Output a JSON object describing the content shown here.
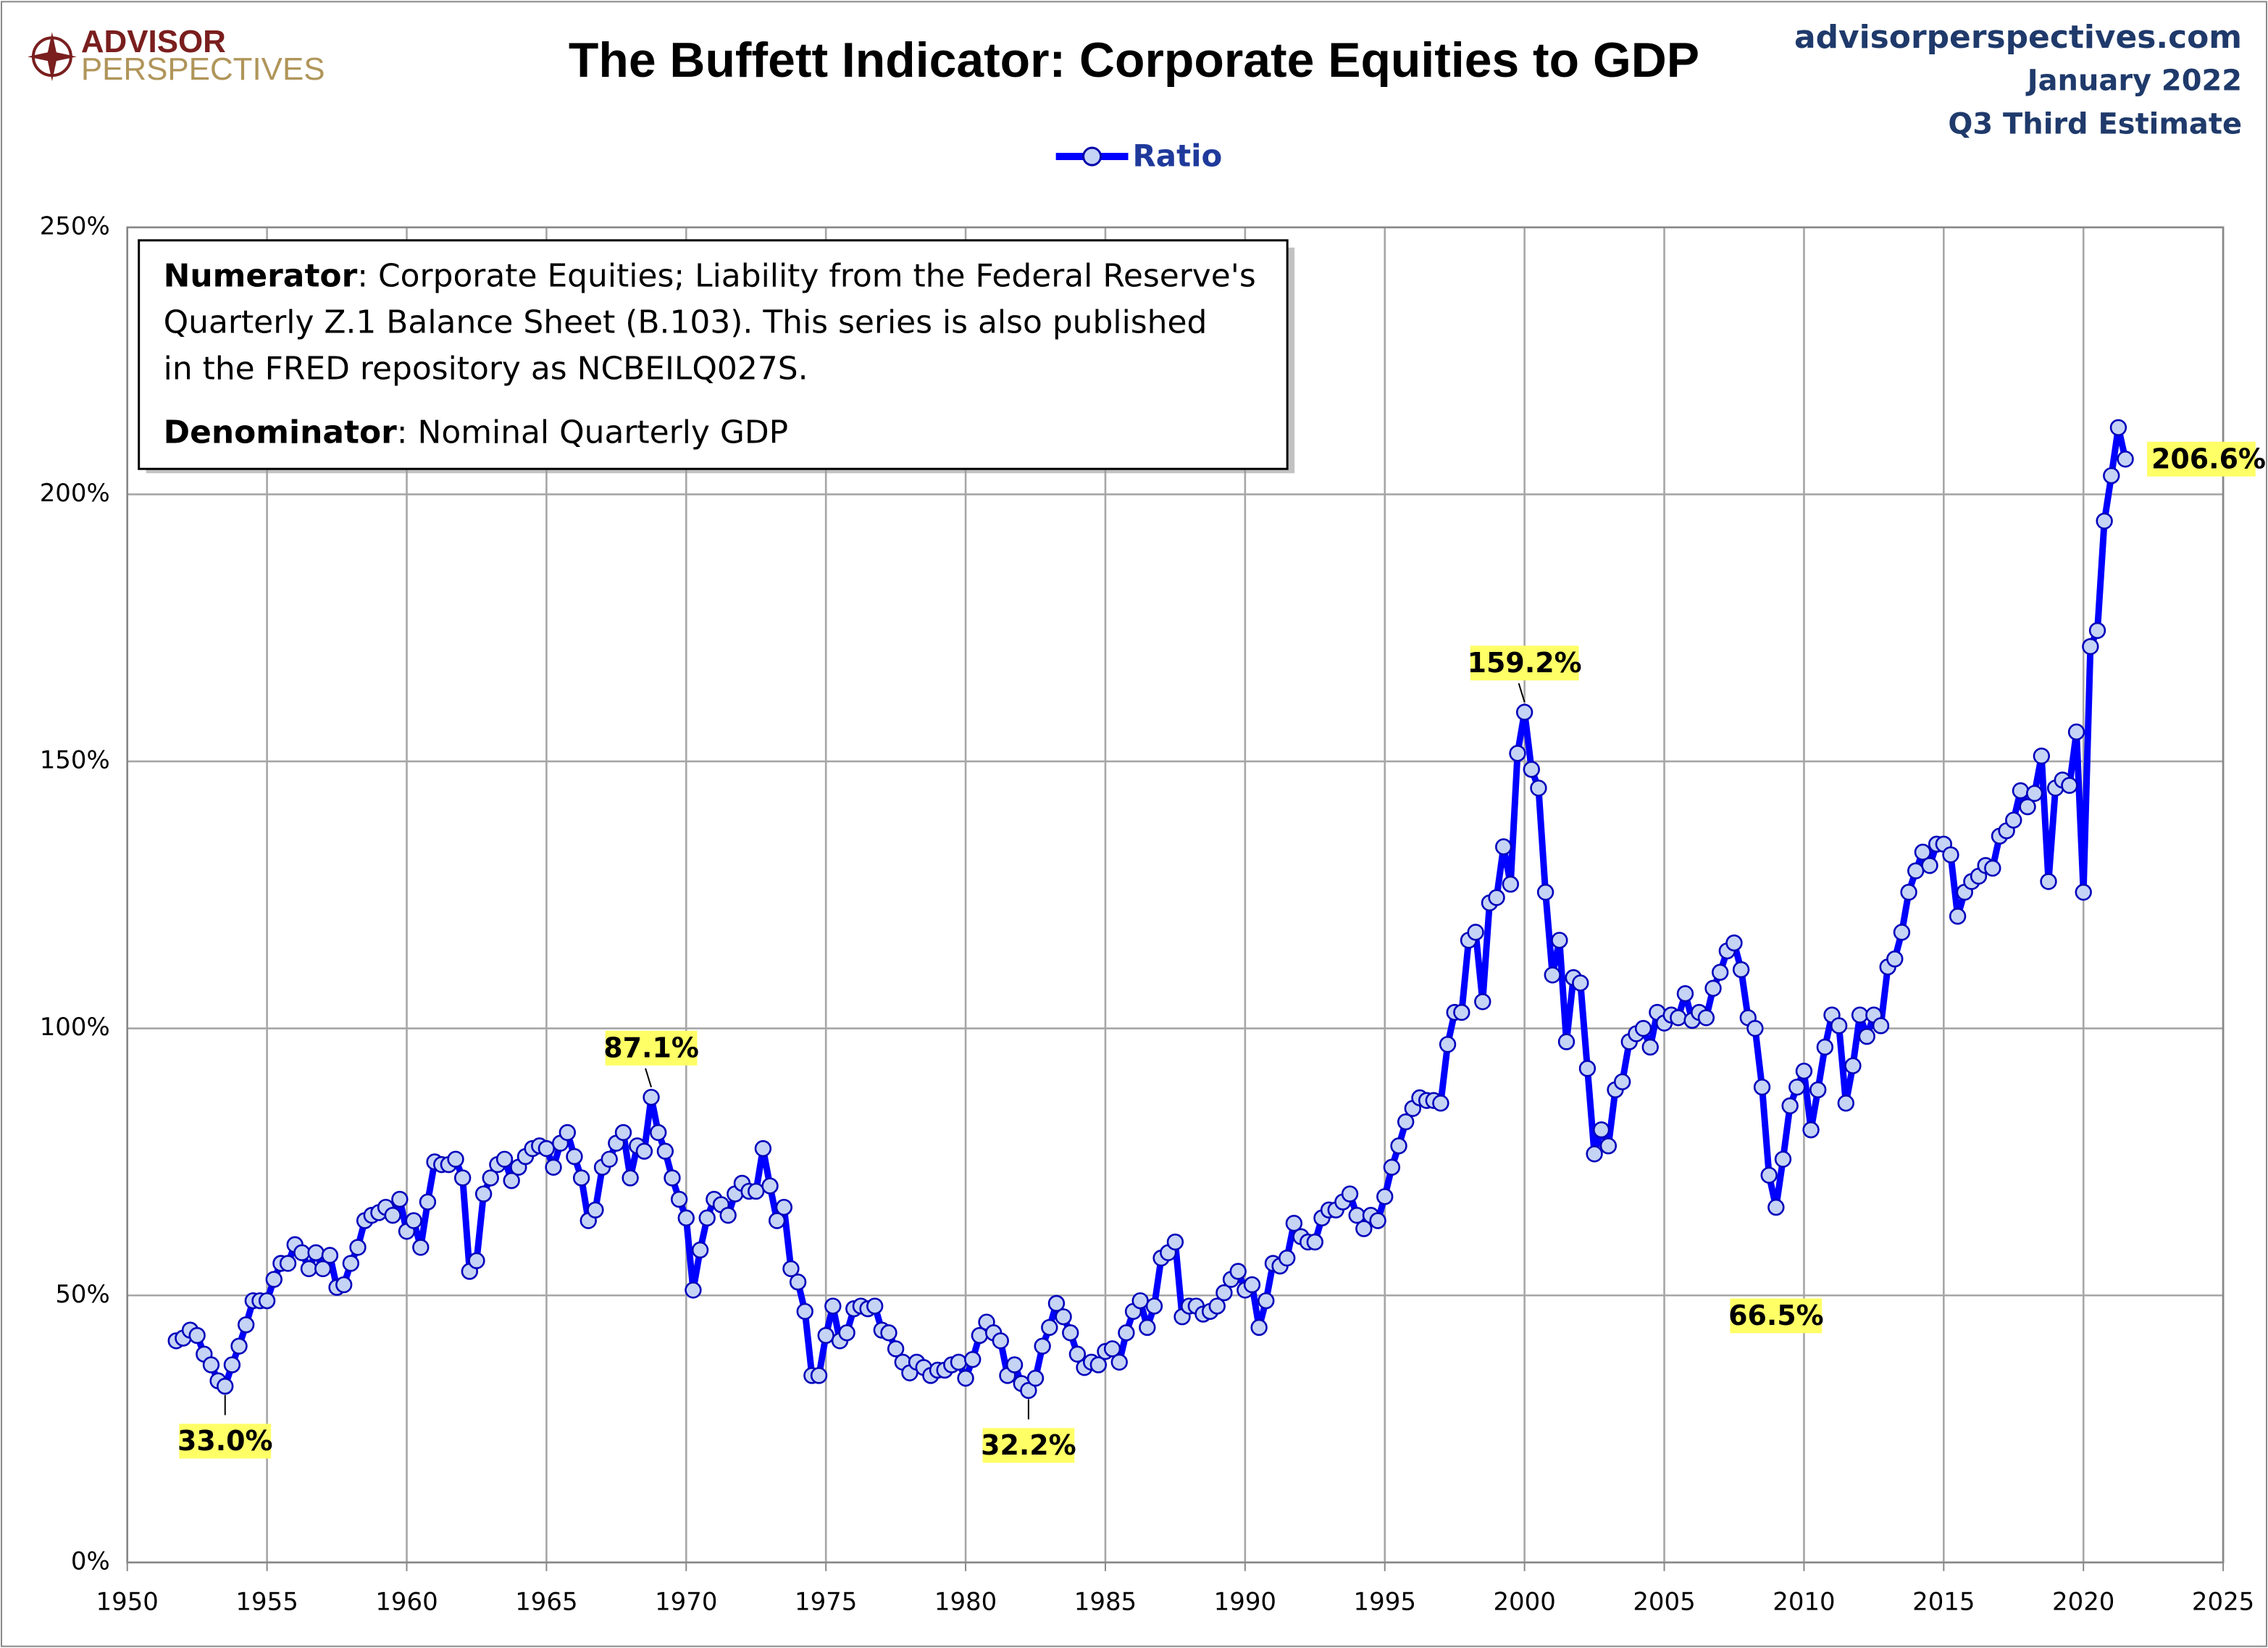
{
  "chart_data": {
    "type": "line",
    "title": "The Buffett Indicator: Corporate Equities to GDP",
    "logo": [
      "ADVISOR",
      "PERSPECTIVES"
    ],
    "source": [
      "advisorperspectives.com",
      "January 2022",
      "Q3 Third Estimate"
    ],
    "note": [
      {
        "bold": "Numerator",
        "text": ": Corporate Equities; Liability from the Federal Reserve's"
      },
      {
        "text": "Quarterly Z.1 Balance Sheet (B.103). This series is also published"
      },
      {
        "text": "in the FRED repository as NCBEILQ027S."
      },
      {
        "bold": "Denominator",
        "text": ": Nominal Quarterly GDP"
      }
    ],
    "legend": "top",
    "grid": true,
    "xlim": [
      1950,
      2025
    ],
    "xticks": [
      1950,
      1955,
      1960,
      1965,
      1970,
      1975,
      1980,
      1985,
      1990,
      1995,
      2000,
      2005,
      2010,
      2015,
      2020,
      2025
    ],
    "ylim": [
      0,
      250
    ],
    "yticks": [
      {
        "value": 0,
        "label": "0%"
      },
      {
        "value": 50,
        "label": "50%"
      },
      {
        "value": 100,
        "label": "100%"
      },
      {
        "value": 150,
        "label": "150%"
      },
      {
        "value": 200,
        "label": "200%"
      },
      {
        "value": 250,
        "label": "250%"
      }
    ],
    "x": [
      1951.75,
      1952,
      1952.25,
      1952.5,
      1952.75,
      1953,
      1953.25,
      1953.5,
      1953.75,
      1954,
      1954.25,
      1954.5,
      1954.75,
      1955,
      1955.25,
      1955.5,
      1955.75,
      1956,
      1956.25,
      1956.5,
      1956.75,
      1957,
      1957.25,
      1957.5,
      1957.75,
      1958,
      1958.25,
      1958.5,
      1958.75,
      1959,
      1959.25,
      1959.5,
      1959.75,
      1960,
      1960.25,
      1960.5,
      1960.75,
      1961,
      1961.25,
      1961.5,
      1961.75,
      1962,
      1962.25,
      1962.5,
      1962.75,
      1963,
      1963.25,
      1963.5,
      1963.75,
      1964,
      1964.25,
      1964.5,
      1964.75,
      1965,
      1965.25,
      1965.5,
      1965.75,
      1966,
      1966.25,
      1966.5,
      1966.75,
      1967,
      1967.25,
      1967.5,
      1967.75,
      1968,
      1968.25,
      1968.5,
      1968.75,
      1969,
      1969.25,
      1969.5,
      1969.75,
      1970,
      1970.25,
      1970.5,
      1970.75,
      1971,
      1971.25,
      1971.5,
      1971.75,
      1972,
      1972.25,
      1972.5,
      1972.75,
      1973,
      1973.25,
      1973.5,
      1973.75,
      1974,
      1974.25,
      1974.5,
      1974.75,
      1975,
      1975.25,
      1975.5,
      1975.75,
      1976,
      1976.25,
      1976.5,
      1976.75,
      1977,
      1977.25,
      1977.5,
      1977.75,
      1978,
      1978.25,
      1978.5,
      1978.75,
      1979,
      1979.25,
      1979.5,
      1979.75,
      1980,
      1980.25,
      1980.5,
      1980.75,
      1981,
      1981.25,
      1981.5,
      1981.75,
      1982,
      1982.25,
      1982.5,
      1982.75,
      1983,
      1983.25,
      1983.5,
      1983.75,
      1984,
      1984.25,
      1984.5,
      1984.75,
      1985,
      1985.25,
      1985.5,
      1985.75,
      1986,
      1986.25,
      1986.5,
      1986.75,
      1987,
      1987.25,
      1987.5,
      1987.75,
      1988,
      1988.25,
      1988.5,
      1988.75,
      1989,
      1989.25,
      1989.5,
      1989.75,
      1990,
      1990.25,
      1990.5,
      1990.75,
      1991,
      1991.25,
      1991.5,
      1991.75,
      1992,
      1992.25,
      1992.5,
      1992.75,
      1993,
      1993.25,
      1993.5,
      1993.75,
      1994,
      1994.25,
      1994.5,
      1994.75,
      1995,
      1995.25,
      1995.5,
      1995.75,
      1996,
      1996.25,
      1996.5,
      1996.75,
      1997,
      1997.25,
      1997.5,
      1997.75,
      1998,
      1998.25,
      1998.5,
      1998.75,
      1999,
      1999.25,
      1999.5,
      1999.75,
      2000,
      2000.25,
      2000.5,
      2000.75,
      2001,
      2001.25,
      2001.5,
      2001.75,
      2002,
      2002.25,
      2002.5,
      2002.75,
      2003,
      2003.25,
      2003.5,
      2003.75,
      2004,
      2004.25,
      2004.5,
      2004.75,
      2005,
      2005.25,
      2005.5,
      2005.75,
      2006,
      2006.25,
      2006.5,
      2006.75,
      2007,
      2007.25,
      2007.5,
      2007.75,
      2008,
      2008.25,
      2008.5,
      2008.75,
      2009,
      2009.25,
      2009.5,
      2009.75,
      2010,
      2010.25,
      2010.5,
      2010.75,
      2011,
      2011.25,
      2011.5,
      2011.75,
      2012,
      2012.25,
      2012.5,
      2012.75,
      2013,
      2013.25,
      2013.5,
      2013.75,
      2014,
      2014.25,
      2014.5,
      2014.75,
      2015,
      2015.25,
      2015.5,
      2015.75,
      2016,
      2016.25,
      2016.5,
      2016.75,
      2017,
      2017.25,
      2017.5,
      2017.75,
      2018,
      2018.25,
      2018.5,
      2018.75,
      2019,
      2019.25,
      2019.5,
      2019.75,
      2020,
      2020.25,
      2020.5,
      2020.75,
      2021,
      2021.25,
      2021.5
    ],
    "series": [
      {
        "name": "Ratio",
        "color": "#0000ff",
        "marker_fill": "#c5d3f5",
        "values": [
          41.5,
          42,
          43.5,
          42.5,
          39,
          37,
          34,
          33.0,
          37,
          40.5,
          44.5,
          49,
          49,
          49,
          53,
          56,
          56,
          59.5,
          58,
          55,
          58,
          55,
          57.5,
          51.5,
          52,
          56,
          59,
          64,
          65,
          65.5,
          66.5,
          65,
          68,
          62,
          64,
          59,
          67.5,
          75,
          74.5,
          74.5,
          75.5,
          72,
          54.5,
          56.5,
          69,
          72,
          74.5,
          75.5,
          71.5,
          74,
          76,
          77.5,
          78,
          77.5,
          74,
          78.5,
          80.5,
          76,
          72,
          64,
          66,
          74,
          75.5,
          78.5,
          80.5,
          72,
          78,
          77,
          87.1,
          80.5,
          77,
          72,
          68,
          64.5,
          51,
          58.5,
          64.5,
          68,
          67,
          65,
          69,
          71,
          69.5,
          69.5,
          77.5,
          70.5,
          64,
          66.5,
          55,
          52.5,
          47,
          35,
          35,
          42.5,
          48,
          41.5,
          43,
          47.5,
          48,
          47.5,
          48,
          43.5,
          43,
          40,
          37.5,
          35.5,
          37.5,
          36.5,
          35,
          36,
          36,
          37,
          37.5,
          34.5,
          38,
          42.5,
          45,
          43,
          41.5,
          35,
          37,
          33.5,
          32.2,
          34.5,
          40.5,
          44,
          48.5,
          46,
          43,
          39,
          36.5,
          37.5,
          37,
          39.5,
          40,
          37.5,
          43,
          47,
          49,
          44,
          48,
          57,
          58,
          60,
          46,
          48,
          48,
          46.5,
          47,
          48,
          50.5,
          53,
          54.5,
          51,
          52,
          44,
          49,
          56,
          55.5,
          57,
          63.5,
          61,
          60,
          60,
          64.5,
          66,
          66,
          67.5,
          69,
          65,
          62.5,
          65,
          64,
          68.5,
          74,
          78,
          82.5,
          85,
          87,
          86.5,
          86.5,
          86,
          97,
          103,
          103,
          116.5,
          118,
          105,
          123.5,
          124.5,
          134,
          127,
          151.5,
          159.2,
          148.5,
          145,
          125.5,
          110,
          116.5,
          97.5,
          109.5,
          108.5,
          92.5,
          76.5,
          81,
          78,
          88.5,
          90,
          97.5,
          99,
          100,
          96.5,
          103,
          101,
          102.5,
          102,
          106.5,
          101.5,
          103,
          102,
          107.5,
          110.5,
          114.5,
          116,
          111,
          102,
          100,
          89,
          72.5,
          66.5,
          75.5,
          85.5,
          89,
          92,
          81,
          88.5,
          96.5,
          102.5,
          100.5,
          86,
          93,
          102.5,
          98.5,
          102.5,
          100.5,
          111.5,
          113,
          118,
          125.5,
          129.5,
          133,
          130.5,
          134.5,
          134.5,
          132.5,
          121,
          125.5,
          127.5,
          128.5,
          130.5,
          130,
          136,
          137,
          139,
          144.5,
          141.5,
          144,
          151,
          127.5,
          145,
          146.5,
          145.5,
          155.5,
          125.5,
          171.5,
          174.5,
          195,
          203.5,
          212.5,
          206.6
        ],
        "value_labels": [
          null,
          null,
          null,
          null,
          null,
          null,
          null,
          "33.0%",
          null,
          null,
          null,
          null,
          null,
          null,
          null,
          null,
          null,
          null,
          null,
          null,
          null,
          null,
          null,
          null,
          null,
          null,
          null,
          null,
          null,
          null,
          null,
          null,
          null,
          null,
          null,
          null,
          null,
          null,
          null,
          null,
          null,
          null,
          null,
          null,
          null,
          null,
          null,
          null,
          null,
          null,
          null,
          null,
          null,
          null,
          null,
          null,
          null,
          null,
          null,
          null,
          null,
          null,
          null,
          null,
          null,
          null,
          null,
          null,
          "87.1%",
          null,
          null,
          null,
          null,
          null,
          null,
          null,
          null,
          null,
          null,
          null,
          null,
          null,
          null,
          null,
          null,
          null,
          null,
          null,
          null,
          null,
          null,
          null,
          null,
          null,
          null,
          null,
          null,
          null,
          null,
          null,
          null,
          null,
          null,
          null,
          null,
          null,
          null,
          null,
          null,
          null,
          null,
          null,
          null,
          null,
          null,
          null,
          null,
          null,
          null,
          null,
          null,
          null,
          "32.2%",
          null,
          null,
          null,
          null,
          null,
          null,
          null,
          null,
          null,
          null,
          null,
          null,
          null,
          null,
          null,
          null,
          null,
          null,
          null,
          null,
          null,
          null,
          null,
          null,
          null,
          null,
          null,
          null,
          null,
          null,
          null,
          null,
          null,
          null,
          null,
          null,
          null,
          null,
          null,
          null,
          null,
          null,
          null,
          null,
          null,
          null,
          null,
          null,
          null,
          null,
          null,
          null,
          null,
          null,
          null,
          null,
          null,
          null,
          null,
          null,
          null,
          null,
          null,
          null,
          null,
          null,
          null,
          null,
          null,
          null,
          "159.2%",
          null,
          null,
          null,
          null,
          null,
          null,
          null,
          null,
          null,
          null,
          null,
          null,
          null,
          null,
          null,
          null,
          null,
          null,
          null,
          null,
          null,
          null,
          null,
          null,
          null,
          null,
          null,
          null,
          null,
          null,
          null,
          null,
          null,
          null,
          null,
          "66.5%",
          null,
          null,
          null,
          null,
          null,
          null,
          null,
          null,
          null,
          null,
          null,
          null,
          null,
          null,
          null,
          null,
          null,
          null,
          null,
          null,
          null,
          null,
          null,
          null,
          null,
          null,
          null,
          null,
          null,
          null,
          null,
          null,
          null,
          null,
          null,
          null,
          null,
          null,
          null,
          null,
          null,
          null,
          null,
          null,
          null,
          null,
          null,
          null,
          null,
          "206.6%"
        ]
      }
    ]
  }
}
